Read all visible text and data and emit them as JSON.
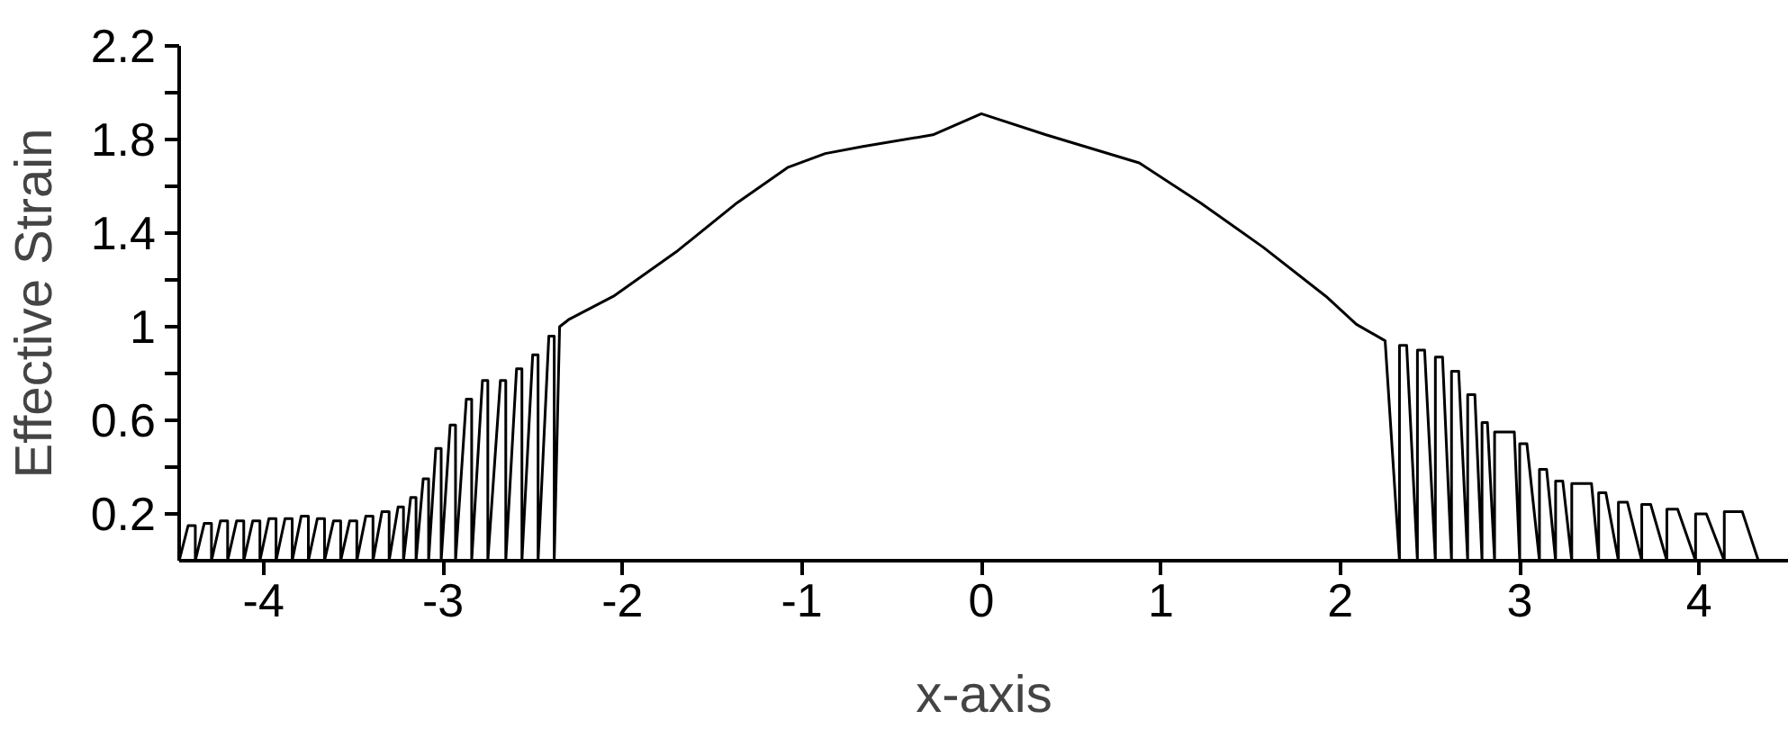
{
  "chart_data": {
    "type": "line",
    "xlabel": "x-axis",
    "ylabel": "Effective Strain",
    "xlim": [
      -4.47,
      4.5
    ],
    "ylim": [
      0,
      2.2
    ],
    "xticks": [
      -4,
      -3,
      -2,
      -1,
      0,
      1,
      2,
      3,
      4
    ],
    "yticks": [
      0.2,
      {
        "value": 0.4,
        "label": null
      },
      0.6,
      {
        "value": 0.8,
        "label": null
      },
      1,
      {
        "value": 1.2,
        "label": null
      },
      1.4,
      {
        "value": 1.6,
        "label": null
      },
      1.8,
      {
        "value": 2.0,
        "label": null
      },
      2.2
    ],
    "grid": false,
    "marker": "none",
    "line_style": "solid",
    "series": [
      {
        "color": "#000000",
        "x": [
          -4.47,
          -4.42,
          -4.38,
          -4.38,
          -4.33,
          -4.29,
          -4.29,
          -4.24,
          -4.2,
          -4.2,
          -4.15,
          -4.11,
          -4.11,
          -4.06,
          -4.02,
          -4.02,
          -3.97,
          -3.93,
          -3.93,
          -3.88,
          -3.84,
          -3.84,
          -3.79,
          -3.75,
          -3.75,
          -3.7,
          -3.66,
          -3.66,
          -3.61,
          -3.57,
          -3.57,
          -3.52,
          -3.48,
          -3.48,
          -3.43,
          -3.39,
          -3.39,
          -3.34,
          -3.3,
          -3.3,
          -3.25,
          -3.22,
          -3.22,
          -3.18,
          -3.15,
          -3.15,
          -3.11,
          -3.08,
          -3.08,
          -3.04,
          -3.01,
          -3.01,
          -2.96,
          -2.93,
          -2.93,
          -2.87,
          -2.84,
          -2.84,
          -2.78,
          -2.75,
          -2.75,
          -2.68,
          -2.65,
          -2.65,
          -2.59,
          -2.56,
          -2.56,
          -2.5,
          -2.47,
          -2.47,
          -2.41,
          -2.38,
          -2.38,
          -2.35,
          -2.3,
          -2.05,
          -1.7,
          -1.36,
          -1.08,
          -0.87,
          -0.66,
          -0.27,
          0,
          0.36,
          0.88,
          1.22,
          1.57,
          1.92,
          2.09,
          2.25,
          2.33,
          2.33,
          2.37,
          2.43,
          2.43,
          2.47,
          2.53,
          2.53,
          2.57,
          2.62,
          2.62,
          2.66,
          2.71,
          2.71,
          2.75,
          2.79,
          2.79,
          2.82,
          2.86,
          2.86,
          2.97,
          3.0,
          3.0,
          3.04,
          3.11,
          3.11,
          3.15,
          3.2,
          3.2,
          3.24,
          3.29,
          3.29,
          3.4,
          3.44,
          3.44,
          3.48,
          3.55,
          3.55,
          3.6,
          3.68,
          3.68,
          3.73,
          3.82,
          3.82,
          3.88,
          3.98,
          3.98,
          4.04,
          4.14,
          4.14,
          4.24,
          4.33,
          4.5
        ],
        "values": [
          0,
          0.15,
          0.15,
          0,
          0.16,
          0.16,
          0,
          0.17,
          0.17,
          0,
          0.17,
          0.17,
          0,
          0.17,
          0.17,
          0,
          0.18,
          0.18,
          0,
          0.18,
          0.18,
          0,
          0.19,
          0.19,
          0,
          0.18,
          0.18,
          0,
          0.17,
          0.17,
          0,
          0.17,
          0.17,
          0,
          0.19,
          0.19,
          0,
          0.21,
          0.21,
          0,
          0.23,
          0.23,
          0,
          0.27,
          0.27,
          0,
          0.35,
          0.35,
          0,
          0.48,
          0.48,
          0,
          0.58,
          0.58,
          0,
          0.69,
          0.69,
          0,
          0.77,
          0.77,
          0,
          0.77,
          0.77,
          0,
          0.82,
          0.82,
          0,
          0.88,
          0.88,
          0,
          0.96,
          0.96,
          0,
          1.0,
          1.03,
          1.13,
          1.32,
          1.53,
          1.68,
          1.74,
          1.77,
          1.82,
          1.91,
          1.82,
          1.7,
          1.53,
          1.34,
          1.13,
          1.01,
          0.94,
          0,
          0.92,
          0.92,
          0,
          0.9,
          0.9,
          0,
          0.87,
          0.87,
          0,
          0.81,
          0.81,
          0,
          0.71,
          0.71,
          0,
          0.59,
          0.59,
          0,
          0.55,
          0.55,
          0,
          0.5,
          0.5,
          0,
          0.39,
          0.39,
          0,
          0.34,
          0.34,
          0,
          0.33,
          0.33,
          0,
          0.29,
          0.29,
          0,
          0.25,
          0.25,
          0,
          0.24,
          0.24,
          0,
          0.22,
          0.22,
          0,
          0.2,
          0.2,
          0,
          0.21,
          0.21,
          0,
          0
        ]
      }
    ]
  }
}
